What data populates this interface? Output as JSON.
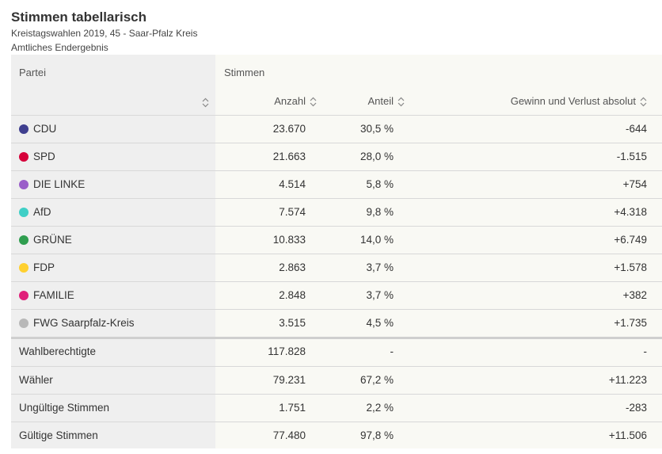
{
  "header": {
    "title": "Stimmen tabellarisch",
    "subtitle": "Kreistagswahlen 2019, 45 - Saar-Pfalz Kreis",
    "status": "Amtliches Endergebnis"
  },
  "table": {
    "col_party": "Partei",
    "col_group": "Stimmen",
    "col_anzahl": "Anzahl",
    "col_anteil": "Anteil",
    "col_gv": "Gewinn und Verlust absolut",
    "parties": [
      {
        "name": "CDU",
        "color": "#3f3f8f",
        "anzahl": "23.670",
        "anteil": "30,5 %",
        "gv": "-644"
      },
      {
        "name": "SPD",
        "color": "#d6003a",
        "anzahl": "21.663",
        "anteil": "28,0 %",
        "gv": "-1.515"
      },
      {
        "name": "DIE LINKE",
        "color": "#9a5ec9",
        "anzahl": "4.514",
        "anteil": "5,8 %",
        "gv": "+754"
      },
      {
        "name": "AfD",
        "color": "#3fcfc6",
        "anzahl": "7.574",
        "anteil": "9,8 %",
        "gv": "+4.318"
      },
      {
        "name": "GRÜNE",
        "color": "#2f9e4f",
        "anzahl": "10.833",
        "anteil": "14,0 %",
        "gv": "+6.749"
      },
      {
        "name": "FDP",
        "color": "#ffd02f",
        "anzahl": "2.863",
        "anteil": "3,7 %",
        "gv": "+1.578"
      },
      {
        "name": "FAMILIE",
        "color": "#e0207a",
        "anzahl": "2.848",
        "anteil": "3,7 %",
        "gv": "+382"
      },
      {
        "name": "FWG Saarpfalz-Kreis",
        "color": "#b8b8b8",
        "anzahl": "3.515",
        "anteil": "4,5 %",
        "gv": "+1.735"
      }
    ],
    "summary": [
      {
        "name": "Wahlberechtigte",
        "anzahl": "117.828",
        "anteil": "-",
        "gv": "-"
      },
      {
        "name": "Wähler",
        "anzahl": "79.231",
        "anteil": "67,2 %",
        "gv": "+11.223"
      },
      {
        "name": "Ungültige Stimmen",
        "anzahl": "1.751",
        "anteil": "2,2 %",
        "gv": "-283"
      },
      {
        "name": "Gültige Stimmen",
        "anzahl": "77.480",
        "anteil": "97,8 %",
        "gv": "+11.506"
      }
    ]
  }
}
